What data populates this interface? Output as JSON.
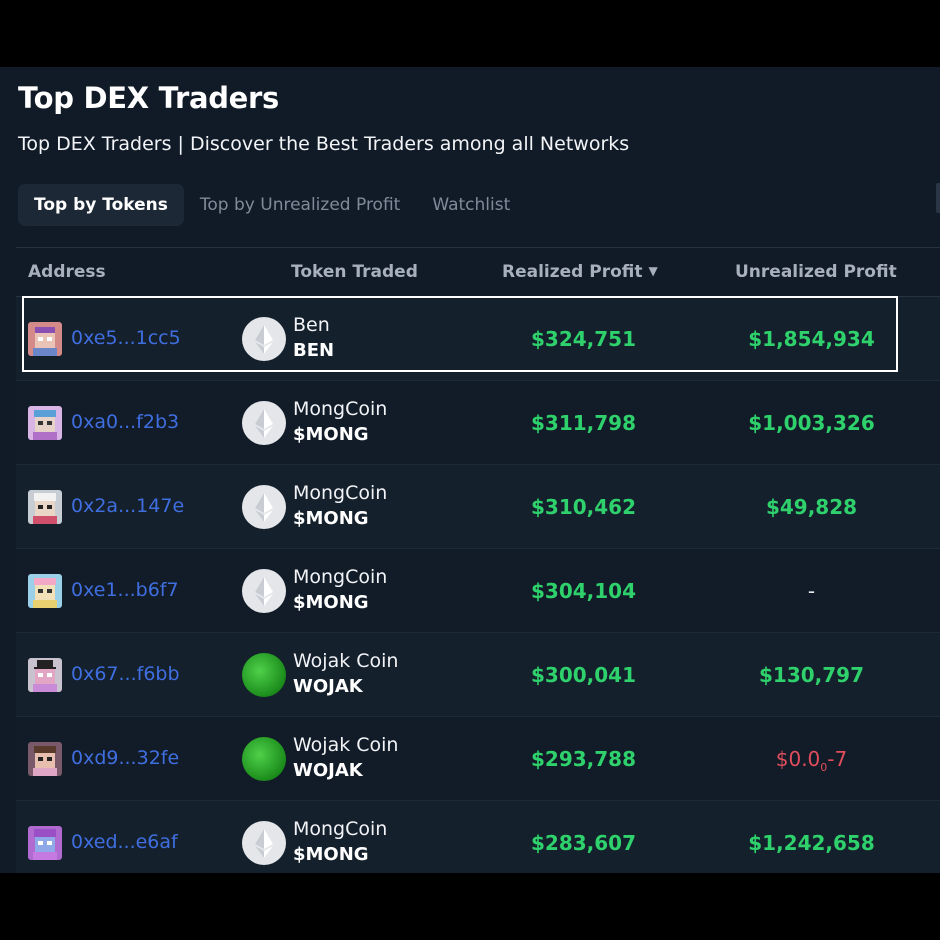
{
  "header": {
    "title": "Top DEX Traders",
    "subtitle": "Top DEX Traders | Discover the Best Traders among all Networks"
  },
  "tabs": [
    {
      "label": "Top by Tokens",
      "active": true
    },
    {
      "label": "Top by Unrealized Profit",
      "active": false
    },
    {
      "label": "Watchlist",
      "active": false
    }
  ],
  "table": {
    "columns": {
      "address": "Address",
      "token": "Token Traded",
      "realized": "Realized Profit",
      "unrealized": "Unrealized Profit"
    },
    "sort_icon": "▼",
    "rows": [
      {
        "address": "0xe5...1cc5",
        "token_name": "Ben",
        "token_symbol": "BEN",
        "coin_icon": "ethereum-icon",
        "realized": "$324,751",
        "unrealized": "$1,854,934"
      },
      {
        "address": "0xa0...f2b3",
        "token_name": "MongCoin",
        "token_symbol": "$MONG",
        "coin_icon": "ethereum-icon",
        "realized": "$311,798",
        "unrealized": "$1,003,326"
      },
      {
        "address": "0x2a...147e",
        "token_name": "MongCoin",
        "token_symbol": "$MONG",
        "coin_icon": "ethereum-icon",
        "realized": "$310,462",
        "unrealized": "$49,828"
      },
      {
        "address": "0xe1...b6f7",
        "token_name": "MongCoin",
        "token_symbol": "$MONG",
        "coin_icon": "ethereum-icon",
        "realized": "$304,104",
        "unrealized": "-"
      },
      {
        "address": "0x67...f6bb",
        "token_name": "Wojak Coin",
        "token_symbol": "WOJAK",
        "coin_icon": "wojak-frog-icon",
        "realized": "$300,041",
        "unrealized": "$130,797"
      },
      {
        "address": "0xd9...32fe",
        "token_name": "Wojak Coin",
        "token_symbol": "WOJAK",
        "coin_icon": "wojak-frog-icon",
        "realized": "$293,788",
        "unrealized_prefix": "$0.0",
        "unrealized_sub": "0",
        "unrealized_suffix": "-7"
      },
      {
        "address": "0xed...e6af",
        "token_name": "MongCoin",
        "token_symbol": "$MONG",
        "coin_icon": "ethereum-icon",
        "realized": "$283,607",
        "unrealized": "$1,242,658"
      }
    ]
  },
  "colors": {
    "background": "#111b27",
    "profit": "#2ed16b",
    "loss": "#e04d5c",
    "address_link": "#3f6ee0"
  }
}
